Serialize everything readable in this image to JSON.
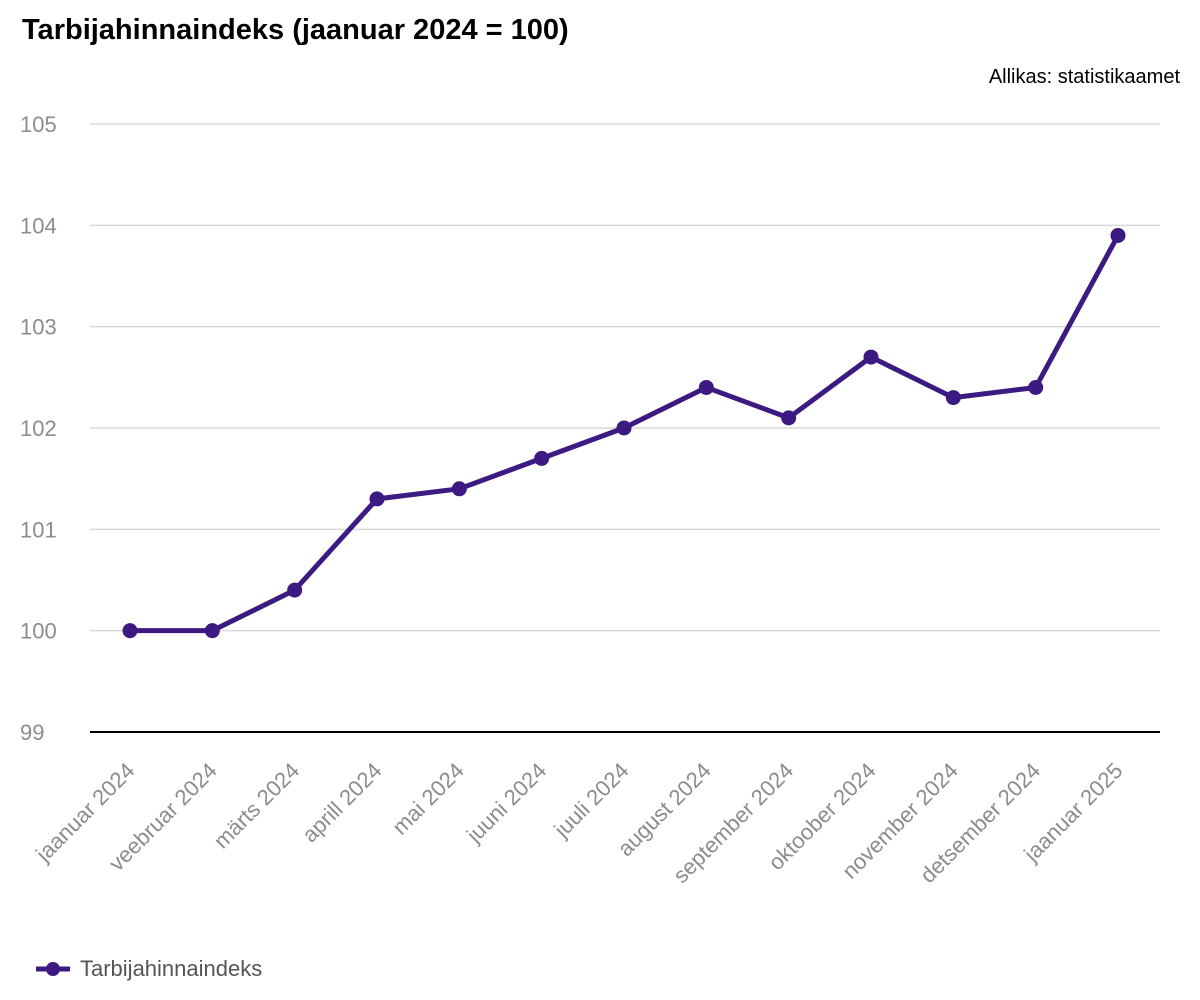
{
  "chart_title": "Tarbijahinnaindeks (jaanuar 2024 = 100)",
  "source": "Allikas: statistikaamet",
  "colors": {
    "line": "#3d1a82",
    "grid": "#d9d9d9",
    "axis": "#000000",
    "tick_label": "#8c8c8c",
    "legend_text": "#555555"
  },
  "chart_data": {
    "type": "line",
    "title": "Tarbijahinnaindeks (jaanuar 2024 = 100)",
    "xlabel": "",
    "ylabel": "",
    "ylim": [
      99,
      105
    ],
    "yticks": [
      "99",
      "100",
      "101",
      "102",
      "103",
      "104",
      "105"
    ],
    "grid": true,
    "legend_position": "bottom-left",
    "categories": [
      "jaanuar 2024",
      "veebruar 2024",
      "märts 2024",
      "aprill 2024",
      "mai 2024",
      "juuni 2024",
      "juuli 2024",
      "august 2024",
      "september 2024",
      "oktoober 2024",
      "november 2024",
      "detsember 2024",
      "jaanuar 2025"
    ],
    "series": [
      {
        "name": "Tarbijahinnaindeks",
        "values": [
          100.0,
          100.0,
          100.4,
          101.3,
          101.4,
          101.7,
          102.0,
          102.4,
          102.1,
          102.7,
          102.3,
          102.4,
          103.9
        ]
      }
    ]
  }
}
